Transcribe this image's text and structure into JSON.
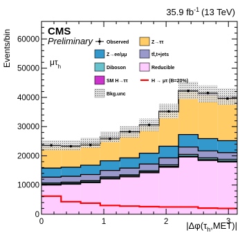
{
  "header": {
    "lumi": "35.9 fb",
    "lumi_sup": "-1",
    "energy": "(13 TeV)",
    "experiment": "CMS",
    "status": "Preliminary",
    "channel": "μτ",
    "channel_sub": "h"
  },
  "chart_data": {
    "type": "bar",
    "stacked": true,
    "ylabel": "Events/bin",
    "xlabel": "|Δφ(τh,MET)|",
    "xlabel_parts": {
      "pre": "|Δφ(τ",
      "sub": "h",
      "post": ",MET)|"
    },
    "x_bin_edges": [
      0,
      0.3142,
      0.6283,
      0.9425,
      1.2566,
      1.5708,
      1.885,
      2.1991,
      2.5133,
      2.8274,
      3.1416
    ],
    "xlim": [
      0,
      3.1416
    ],
    "ylim": [
      0,
      66000
    ],
    "x_ticks": [
      0,
      1,
      2,
      3
    ],
    "y_ticks": [
      0,
      10000,
      20000,
      30000,
      40000,
      50000,
      60000
    ],
    "series": [
      {
        "name": "Reducible",
        "color": "#ffccff",
        "values": [
          10000,
          10300,
          10800,
          12100,
          12800,
          14200,
          16100,
          19600,
          18400,
          17900
        ]
      },
      {
        "name": "Bkg.unc",
        "color": "#dcdcdc",
        "values": [
          300,
          300,
          300,
          300,
          300,
          300,
          300,
          300,
          300,
          300
        ]
      },
      {
        "name": "Diboson",
        "color": "#66c2cc",
        "values": [
          400,
          400,
          400,
          400,
          400,
          400,
          500,
          600,
          600,
          600
        ]
      },
      {
        "name": "tt̄,t+jets",
        "color": "#9999cc",
        "values": [
          2000,
          2000,
          2100,
          2200,
          2300,
          2300,
          2400,
          2500,
          2400,
          2300
        ]
      },
      {
        "name": "Z→ee/μμ",
        "color": "#3399cc",
        "values": [
          3100,
          3100,
          3200,
          3300,
          3500,
          3700,
          4000,
          4300,
          4200,
          4100
        ]
      },
      {
        "name": "Z→ττ",
        "color": "#ffcc66",
        "values": [
          7500,
          7200,
          7400,
          7900,
          8600,
          9400,
          11700,
          14700,
          14900,
          14700
        ]
      },
      {
        "name": "SM H→ττ",
        "color": "#cc33cc",
        "values": [
          300,
          300,
          300,
          300,
          300,
          300,
          300,
          400,
          400,
          400
        ]
      }
    ],
    "observed": {
      "name": "Observed",
      "values": [
        23600,
        23300,
        23700,
        25800,
        28300,
        30600,
        35200,
        42200,
        41500,
        39600
      ]
    },
    "signal": {
      "name": "H → μτ (B=20%)",
      "color": "#ff0000",
      "values": [
        6200,
        4300,
        3800,
        3000,
        2800,
        2600,
        2500,
        2500,
        2100,
        2000
      ]
    },
    "uncertainty_fraction": 0.07,
    "legend": {
      "placement": "top",
      "columns": [
        [
          "Observed",
          "Z→ee/μμ",
          "Diboson",
          "SM H→ττ",
          "Bkg.unc"
        ],
        [
          "Z→ττ",
          "tt̄,t+jets",
          "Reducible",
          "H → μτ (B=20%)"
        ]
      ]
    },
    "grid": false
  }
}
